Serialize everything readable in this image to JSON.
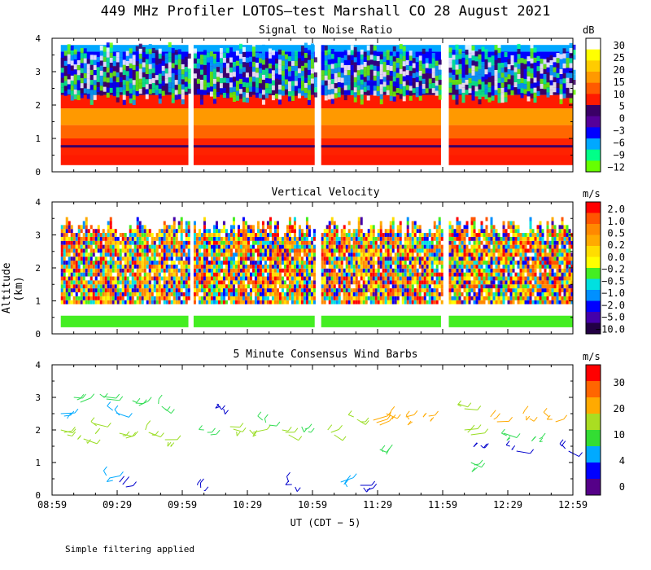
{
  "title": "449 MHz Profiler LOTOS—test Marshall CO 28 August 2021",
  "ylabel": "Altitude (km)",
  "xlabel": "UT  (CDT − 5)",
  "footnote": "Simple filtering applied",
  "chart_data": [
    {
      "type": "heatmap",
      "title": "Signal to Noise Ratio",
      "units": "dB",
      "x_ticks": [
        "08:59",
        "09:29",
        "09:59",
        "10:29",
        "10:59",
        "11:29",
        "11:59",
        "12:29",
        "12:59"
      ],
      "xlim_hours": [
        8.983,
        12.983
      ],
      "ylim_km": [
        0,
        4
      ],
      "y_ticks": [
        "0",
        "1",
        "2",
        "3",
        "4"
      ],
      "colorbar_labels": [
        "30",
        "25",
        "20",
        "15",
        "10",
        "5",
        "0",
        "−3",
        "−6",
        "−9",
        "−12"
      ],
      "colorbar_colors": [
        "#ffffff",
        "#ffff00",
        "#ffcc00",
        "#ff9900",
        "#ff5a00",
        "#ff1a00",
        "#3a0066",
        "#550099",
        "#0000ff",
        "#00a8ff",
        "#00ff88",
        "#66ff00"
      ],
      "data_segments_hours": [
        [
          9.05,
          10.03
        ],
        [
          10.07,
          11.0
        ],
        [
          11.05,
          11.97
        ],
        [
          12.03,
          12.98
        ]
      ],
      "profile": [
        {
          "alt_km": [
            0.2,
            0.5
          ],
          "color": "#ff1a00"
        },
        {
          "alt_km": [
            0.5,
            1.0
          ],
          "color": "#ff2200"
        },
        {
          "alt_km": [
            1.0,
            1.4
          ],
          "color": "#ff6600"
        },
        {
          "alt_km": [
            1.4,
            1.9
          ],
          "color": "#ff9900"
        },
        {
          "alt_km": [
            1.9,
            2.3
          ],
          "color": "#ff1a00"
        },
        {
          "alt_km": [
            2.3,
            2.7
          ],
          "color": "#3a0066"
        },
        {
          "alt_km": [
            2.7,
            3.2
          ],
          "color": "#550099"
        },
        {
          "alt_km": [
            3.2,
            3.6
          ],
          "color": "#0000ff"
        },
        {
          "alt_km": [
            3.6,
            3.8
          ],
          "color": "#00a8ff"
        }
      ]
    },
    {
      "type": "heatmap",
      "title": "Vertical Velocity",
      "units": "m/s",
      "x_ticks": [
        "08:59",
        "09:29",
        "09:59",
        "10:29",
        "10:59",
        "11:29",
        "11:59",
        "12:29",
        "12:59"
      ],
      "ylim_km": [
        0,
        4
      ],
      "y_ticks": [
        "0",
        "1",
        "2",
        "3",
        "4"
      ],
      "colorbar_labels": [
        "2.0",
        "1.0",
        "0.5",
        "0.2",
        "0.0",
        "−0.2",
        "−0.5",
        "−1.0",
        "−2.0",
        "−5.0",
        "−10.0"
      ],
      "colorbar_colors": [
        "#ff0000",
        "#ff5500",
        "#ff8800",
        "#ffaa00",
        "#ffdd00",
        "#ffff00",
        "#44ee22",
        "#00e0e0",
        "#0090ff",
        "#0000ff",
        "#4400aa",
        "#220044"
      ],
      "data_segments_hours": [
        [
          9.05,
          10.03
        ],
        [
          10.07,
          11.0
        ],
        [
          11.05,
          11.97
        ],
        [
          12.03,
          12.98
        ]
      ],
      "near_surface_band_km": [
        0.2,
        0.55
      ],
      "near_surface_color": "#44ee22",
      "data_layer_km": [
        0.9,
        3.2
      ]
    },
    {
      "type": "scatter",
      "title": "5 Minute Consensus Wind Barbs",
      "units": "m/s",
      "x_ticks": [
        "08:59",
        "09:29",
        "09:59",
        "10:29",
        "10:59",
        "11:29",
        "11:59",
        "12:29",
        "12:59"
      ],
      "ylim_km": [
        0,
        4
      ],
      "y_ticks": [
        "0",
        "1",
        "2",
        "3",
        "4"
      ],
      "colorbar_labels": [
        "30",
        "20",
        "10",
        "4",
        "0"
      ],
      "colorbar_colors": [
        "#ff0000",
        "#ff6600",
        "#ffaa00",
        "#aadd22",
        "#33dd33",
        "#00aaff",
        "#0000ff",
        "#550088"
      ],
      "barbs": [
        {
          "t": 9.05,
          "alt": 2.0,
          "speed": 12
        },
        {
          "t": 9.05,
          "alt": 2.5,
          "speed": 5
        },
        {
          "t": 9.15,
          "alt": 3.0,
          "speed": 8
        },
        {
          "t": 9.2,
          "alt": 1.8,
          "speed": 12
        },
        {
          "t": 9.3,
          "alt": 2.2,
          "speed": 11
        },
        {
          "t": 9.35,
          "alt": 3.1,
          "speed": 9
        },
        {
          "t": 9.45,
          "alt": 2.6,
          "speed": 4
        },
        {
          "t": 9.5,
          "alt": 1.9,
          "speed": 11
        },
        {
          "t": 9.6,
          "alt": 2.9,
          "speed": 8
        },
        {
          "t": 9.7,
          "alt": 2.0,
          "speed": 12
        },
        {
          "t": 9.8,
          "alt": 2.8,
          "speed": 8
        },
        {
          "t": 9.85,
          "alt": 1.7,
          "speed": 12
        },
        {
          "t": 9.4,
          "alt": 0.6,
          "speed": 4
        },
        {
          "t": 9.5,
          "alt": 0.4,
          "speed": 3
        },
        {
          "t": 10.1,
          "alt": 0.3,
          "speed": 2
        },
        {
          "t": 10.15,
          "alt": 2.0,
          "speed": 8
        },
        {
          "t": 10.25,
          "alt": 2.8,
          "speed": 3
        },
        {
          "t": 10.35,
          "alt": 2.1,
          "speed": 10
        },
        {
          "t": 10.5,
          "alt": 2.0,
          "speed": 11
        },
        {
          "t": 10.6,
          "alt": 2.3,
          "speed": 9
        },
        {
          "t": 10.75,
          "alt": 2.0,
          "speed": 10
        },
        {
          "t": 10.9,
          "alt": 2.1,
          "speed": 9
        },
        {
          "t": 10.8,
          "alt": 0.4,
          "speed": 2
        },
        {
          "t": 11.1,
          "alt": 2.0,
          "speed": 10
        },
        {
          "t": 11.2,
          "alt": 0.4,
          "speed": 4
        },
        {
          "t": 11.3,
          "alt": 2.4,
          "speed": 12
        },
        {
          "t": 11.45,
          "alt": 2.3,
          "speed": 16
        },
        {
          "t": 11.55,
          "alt": 2.5,
          "speed": 15
        },
        {
          "t": 11.7,
          "alt": 2.4,
          "speed": 14
        },
        {
          "t": 11.85,
          "alt": 2.5,
          "speed": 14
        },
        {
          "t": 11.35,
          "alt": 0.3,
          "speed": 3
        },
        {
          "t": 11.5,
          "alt": 1.4,
          "speed": 8
        },
        {
          "t": 12.1,
          "alt": 2.8,
          "speed": 12
        },
        {
          "t": 12.15,
          "alt": 2.0,
          "speed": 10
        },
        {
          "t": 12.25,
          "alt": 1.6,
          "speed": 3
        },
        {
          "t": 12.35,
          "alt": 2.4,
          "speed": 16
        },
        {
          "t": 12.45,
          "alt": 1.9,
          "speed": 8
        },
        {
          "t": 12.5,
          "alt": 1.5,
          "speed": 3
        },
        {
          "t": 12.6,
          "alt": 2.5,
          "speed": 18
        },
        {
          "t": 12.7,
          "alt": 1.8,
          "speed": 9
        },
        {
          "t": 12.8,
          "alt": 2.4,
          "speed": 15
        },
        {
          "t": 12.9,
          "alt": 1.5,
          "speed": 3
        },
        {
          "t": 12.2,
          "alt": 1.0,
          "speed": 9
        }
      ]
    }
  ]
}
